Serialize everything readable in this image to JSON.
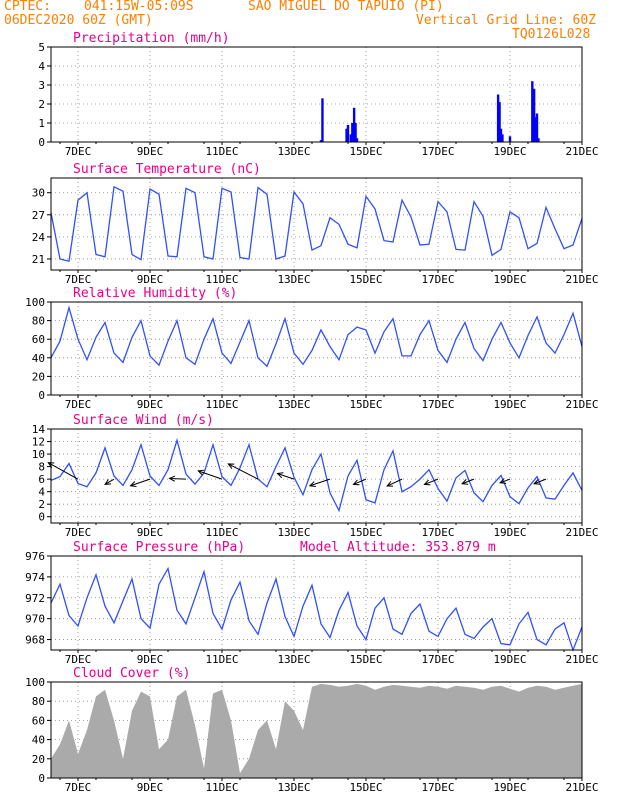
{
  "header": {
    "org": "CPTEC:",
    "coords": "041:15W-05:09S",
    "station": "SAO MIGUEL DO TAPUIO (PI)",
    "run": "06DEC2020 60Z (GMT)",
    "grid_note": "Vertical Grid Line: 60Z",
    "code": "TQ0126L028"
  },
  "x_axis": {
    "labels": [
      "7DEC",
      "9DEC",
      "11DEC",
      "13DEC",
      "15DEC",
      "17DEC",
      "19DEC",
      "21DEC"
    ],
    "positions_days": [
      1,
      3,
      5,
      7,
      9,
      11,
      13,
      15
    ],
    "range_days": [
      0.25,
      15
    ]
  },
  "chart_data": [
    {
      "id": "precip",
      "type": "bar",
      "title": "Precipitation (mm/h)",
      "ylim": [
        0,
        5
      ],
      "yticks": [
        0,
        1,
        2,
        3,
        4,
        5
      ],
      "color": "#0000ff",
      "x_days": [
        7.75,
        7.79,
        8.46,
        8.5,
        8.58,
        8.62,
        8.67,
        8.71,
        8.75,
        12.67,
        12.71,
        12.75,
        12.79,
        13.0,
        13.62,
        13.67,
        13.71,
        13.75,
        13.79
      ],
      "values": [
        0.1,
        2.3,
        0.7,
        0.9,
        0.4,
        1.0,
        1.8,
        1.0,
        0.2,
        2.5,
        2.1,
        0.7,
        0.4,
        0.3,
        3.2,
        2.8,
        1.3,
        1.5,
        0.2
      ]
    },
    {
      "id": "temp",
      "type": "line",
      "title": "Surface Temperature (nC)",
      "ylim": [
        19.5,
        32
      ],
      "yticks": [
        21,
        24,
        27,
        30
      ],
      "color": "#3050ff",
      "x_days": [
        0.25,
        0.5,
        0.75,
        1.0,
        1.25,
        1.5,
        1.75,
        2.0,
        2.25,
        2.5,
        2.75,
        3.0,
        3.25,
        3.5,
        3.75,
        4.0,
        4.25,
        4.5,
        4.75,
        5.0,
        5.25,
        5.5,
        5.75,
        6.0,
        6.25,
        6.5,
        6.75,
        7.0,
        7.25,
        7.5,
        7.75,
        8.0,
        8.25,
        8.5,
        8.75,
        9.0,
        9.25,
        9.5,
        9.75,
        10.0,
        10.25,
        10.5,
        10.75,
        11.0,
        11.25,
        11.5,
        11.75,
        12.0,
        12.25,
        12.5,
        12.75,
        13.0,
        13.25,
        13.5,
        13.75,
        14.0,
        14.25,
        14.5,
        14.75,
        15.0
      ],
      "values": [
        27.3,
        21.0,
        20.7,
        29.0,
        30.0,
        21.6,
        21.3,
        30.8,
        30.2,
        21.6,
        20.9,
        30.5,
        29.8,
        21.4,
        21.3,
        30.6,
        30.0,
        21.3,
        21.0,
        30.6,
        30.1,
        21.2,
        21.0,
        30.7,
        29.8,
        21.0,
        21.4,
        30.1,
        28.5,
        22.2,
        22.8,
        26.6,
        25.7,
        23.0,
        22.5,
        29.5,
        27.8,
        23.5,
        23.3,
        29.0,
        26.7,
        22.9,
        23.0,
        28.8,
        27.4,
        22.3,
        22.2,
        28.8,
        26.8,
        21.5,
        22.3,
        27.4,
        26.6,
        22.4,
        23.1,
        28.0,
        25.1,
        22.4,
        22.9,
        26.5
      ]
    },
    {
      "id": "rh",
      "type": "line",
      "title": "Relative Humidity (%)",
      "ylim": [
        0,
        100
      ],
      "yticks": [
        0,
        20,
        40,
        60,
        80,
        100
      ],
      "color": "#3050ff",
      "x_days": [
        0.25,
        0.5,
        0.75,
        1.0,
        1.25,
        1.5,
        1.75,
        2.0,
        2.25,
        2.5,
        2.75,
        3.0,
        3.25,
        3.5,
        3.75,
        4.0,
        4.25,
        4.5,
        4.75,
        5.0,
        5.25,
        5.5,
        5.75,
        6.0,
        6.25,
        6.5,
        6.75,
        7.0,
        7.25,
        7.5,
        7.75,
        8.0,
        8.25,
        8.5,
        8.75,
        9.0,
        9.25,
        9.5,
        9.75,
        10.0,
        10.25,
        10.5,
        10.75,
        11.0,
        11.25,
        11.5,
        11.75,
        12.0,
        12.25,
        12.5,
        12.75,
        13.0,
        13.25,
        13.5,
        13.75,
        14.0,
        14.25,
        14.5,
        14.75,
        15.0
      ],
      "values": [
        40,
        58,
        94,
        60,
        38,
        62,
        78,
        45,
        35,
        62,
        80,
        42,
        32,
        58,
        80,
        40,
        33,
        60,
        82,
        45,
        34,
        57,
        80,
        40,
        31,
        55,
        82,
        45,
        33,
        48,
        70,
        52,
        38,
        65,
        73,
        70,
        45,
        68,
        82,
        42,
        42,
        65,
        80,
        48,
        35,
        60,
        78,
        50,
        37,
        60,
        78,
        56,
        40,
        64,
        84,
        56,
        45,
        65,
        88,
        52
      ]
    },
    {
      "id": "wind",
      "type": "line",
      "title": "Surface Wind (m/s)",
      "ylim": [
        -1,
        14
      ],
      "yticks": [
        0,
        2,
        4,
        6,
        8,
        10,
        12,
        14
      ],
      "color": "#3050ff",
      "x_days": [
        0.25,
        0.5,
        0.75,
        1.0,
        1.25,
        1.5,
        1.75,
        2.0,
        2.25,
        2.5,
        2.75,
        3.0,
        3.25,
        3.5,
        3.75,
        4.0,
        4.25,
        4.5,
        4.75,
        5.0,
        5.25,
        5.5,
        5.75,
        6.0,
        6.25,
        6.5,
        6.75,
        7.0,
        7.25,
        7.5,
        7.75,
        8.0,
        8.25,
        8.5,
        8.75,
        9.0,
        9.25,
        9.5,
        9.75,
        10.0,
        10.25,
        10.5,
        10.75,
        11.0,
        11.25,
        11.5,
        11.75,
        12.0,
        12.25,
        12.5,
        12.75,
        13.0,
        13.25,
        13.5,
        13.75,
        14.0,
        14.25,
        14.5,
        14.75,
        15.0
      ],
      "values": [
        5.8,
        6.4,
        8.5,
        5.3,
        4.8,
        7.0,
        11.0,
        6.5,
        5.0,
        7.5,
        11.5,
        6.5,
        5.0,
        7.5,
        12.2,
        6.8,
        5.2,
        7.0,
        11.5,
        6.4,
        5.0,
        7.8,
        11.5,
        6.0,
        4.8,
        8.0,
        11.0,
        6.3,
        3.5,
        7.5,
        10.0,
        3.8,
        1.0,
        6.5,
        9.0,
        2.7,
        2.2,
        7.5,
        10.5,
        4.0,
        4.8,
        6.0,
        7.5,
        4.5,
        2.5,
        6.2,
        7.4,
        3.8,
        2.4,
        5.0,
        6.6,
        3.2,
        2.1,
        4.6,
        6.4,
        3.0,
        2.8,
        5.0,
        7.0,
        4.2
      ],
      "vectors": {
        "x_days": [
          1.0,
          2.0,
          3.0,
          4.0,
          5.0,
          6.0,
          7.0,
          8.0,
          9.0,
          10.0,
          11.0,
          12.0,
          13.0,
          14.0
        ],
        "u_ms": [
          -9.0,
          -2.7,
          -5.9,
          -5.0,
          -7.2,
          -9.0,
          -5.0,
          -6.1,
          -3.8,
          -4.5,
          -4.1,
          -3.6,
          -3.0,
          -3.6
        ],
        "v_ms": [
          5.0,
          -1.6,
          -2.0,
          0.2,
          2.5,
          4.6,
          1.7,
          -2.0,
          -1.6,
          -2.1,
          -1.6,
          -1.4,
          -1.1,
          -1.4
        ],
        "color": "#000000"
      }
    },
    {
      "id": "pressure",
      "type": "line",
      "title": "Surface Pressure (hPa)",
      "subtitle": "Model Altitude: 353.879 m",
      "ylim": [
        967,
        976
      ],
      "yticks": [
        968,
        970,
        972,
        974,
        976
      ],
      "color": "#3050ff",
      "x_days": [
        0.25,
        0.5,
        0.75,
        1.0,
        1.25,
        1.5,
        1.75,
        2.0,
        2.25,
        2.5,
        2.75,
        3.0,
        3.25,
        3.5,
        3.75,
        4.0,
        4.25,
        4.5,
        4.75,
        5.0,
        5.25,
        5.5,
        5.75,
        6.0,
        6.25,
        6.5,
        6.75,
        7.0,
        7.25,
        7.5,
        7.75,
        8.0,
        8.25,
        8.5,
        8.75,
        9.0,
        9.25,
        9.5,
        9.75,
        10.0,
        10.25,
        10.5,
        10.75,
        11.0,
        11.25,
        11.5,
        11.75,
        12.0,
        12.25,
        12.5,
        12.75,
        13.0,
        13.25,
        13.5,
        13.75,
        14.0,
        14.25,
        14.5,
        14.75,
        15.0
      ],
      "values": [
        971.5,
        973.3,
        970.3,
        969.3,
        972.0,
        974.2,
        971.2,
        969.6,
        971.7,
        973.8,
        970.0,
        969.1,
        973.3,
        974.8,
        970.8,
        969.5,
        972.0,
        974.5,
        970.5,
        969.0,
        971.8,
        973.5,
        969.8,
        968.5,
        971.5,
        973.8,
        970.2,
        968.3,
        971.2,
        973.2,
        969.5,
        968.2,
        970.8,
        972.5,
        969.3,
        968.0,
        971.0,
        972.0,
        969.0,
        968.5,
        970.5,
        971.4,
        968.8,
        968.3,
        970.0,
        971.0,
        968.5,
        968.1,
        969.2,
        970.0,
        967.6,
        967.5,
        969.5,
        970.6,
        968.0,
        967.5,
        969.0,
        969.6,
        967.0,
        969.2
      ]
    },
    {
      "id": "cloud",
      "type": "area",
      "title": "Cloud Cover (%)",
      "ylim": [
        0,
        100
      ],
      "yticks": [
        0,
        20,
        40,
        60,
        80,
        100
      ],
      "color": "#aaaaaa",
      "x_days": [
        0.25,
        0.5,
        0.75,
        1.0,
        1.25,
        1.5,
        1.75,
        2.0,
        2.25,
        2.5,
        2.75,
        3.0,
        3.25,
        3.5,
        3.75,
        4.0,
        4.25,
        4.5,
        4.75,
        5.0,
        5.25,
        5.5,
        5.75,
        6.0,
        6.25,
        6.5,
        6.75,
        7.0,
        7.25,
        7.5,
        7.75,
        8.0,
        8.25,
        8.5,
        8.75,
        9.0,
        9.25,
        9.5,
        9.75,
        10.0,
        10.25,
        10.5,
        10.75,
        11.0,
        11.25,
        11.5,
        11.75,
        12.0,
        12.25,
        12.5,
        12.75,
        13.0,
        13.25,
        13.5,
        13.75,
        14.0,
        14.25,
        14.5,
        14.75,
        15.0
      ],
      "values": [
        20,
        35,
        60,
        25,
        50,
        85,
        92,
        60,
        20,
        70,
        90,
        85,
        30,
        40,
        85,
        92,
        55,
        10,
        88,
        92,
        60,
        5,
        20,
        50,
        60,
        30,
        80,
        70,
        50,
        95,
        98,
        97,
        95,
        96,
        98,
        96,
        92,
        95,
        97,
        96,
        95,
        94,
        96,
        95,
        93,
        96,
        95,
        94,
        92,
        95,
        96,
        93,
        90,
        94,
        96,
        95,
        92,
        94,
        96,
        98
      ]
    }
  ]
}
